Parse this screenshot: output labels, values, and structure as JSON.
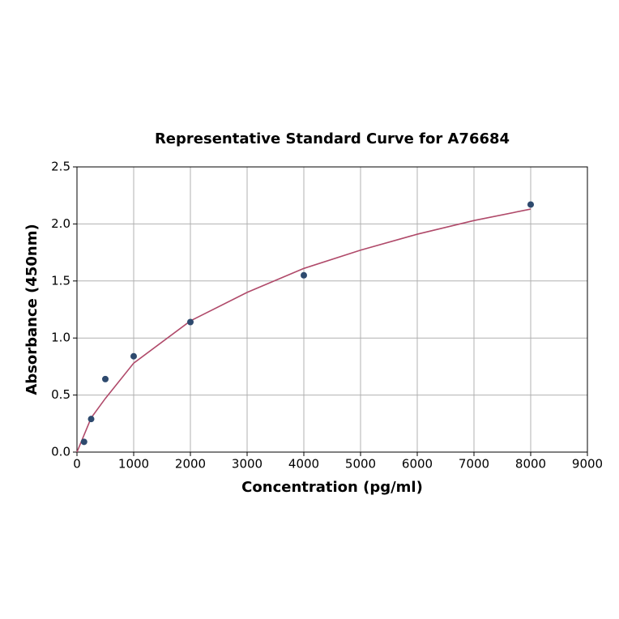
{
  "chart_data": {
    "type": "scatter",
    "title": "Representative Standard Curve for A76684",
    "xlabel": "Concentration (pg/ml)",
    "ylabel": "Absorbance (450nm)",
    "xlim": [
      0,
      9000
    ],
    "xticks": [
      0,
      1000,
      2000,
      3000,
      4000,
      5000,
      6000,
      7000,
      8000,
      9000
    ],
    "ylim": [
      0,
      2.5
    ],
    "yticks": [
      {
        "value": 0,
        "label": "0.0"
      },
      0.5,
      {
        "value": 1,
        "label": "1.0"
      },
      1.5,
      {
        "value": 2,
        "label": "2.0"
      },
      2.5
    ],
    "grid": true,
    "series": [
      {
        "type": "scatter",
        "color": "#2e4a6e",
        "x": [
          125,
          250,
          500,
          1000,
          2000,
          4000,
          8000
        ],
        "values": [
          0.09,
          0.29,
          0.64,
          0.84,
          1.14,
          1.55,
          2.17
        ]
      },
      {
        "type": "line",
        "color": "#b04a6a",
        "x": [
          0,
          250,
          500,
          1000,
          2000,
          3000,
          4000,
          5000,
          6000,
          7000,
          8000
        ],
        "values": [
          0,
          0.3,
          0.47,
          0.78,
          1.15,
          1.4,
          1.61,
          1.77,
          1.91,
          2.03,
          2.13
        ]
      }
    ]
  }
}
